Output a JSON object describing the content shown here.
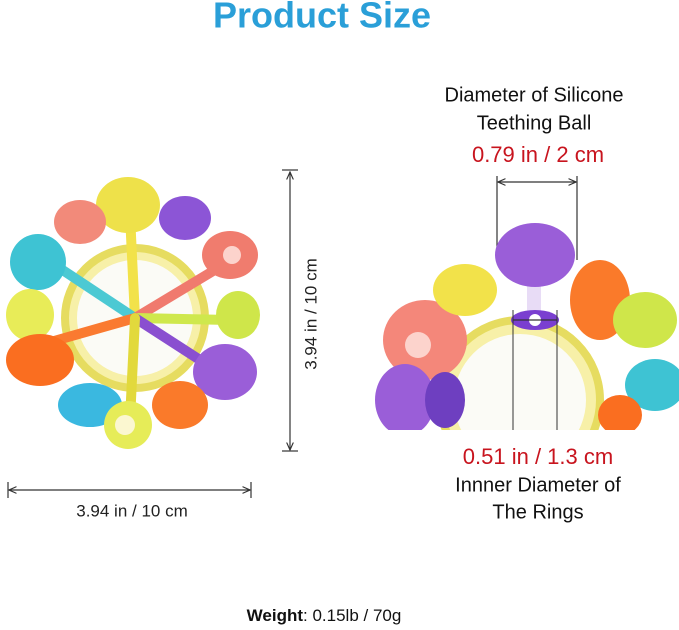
{
  "header": {
    "title": "Product Size"
  },
  "left": {
    "height_label": "3.94 in / 10 cm",
    "width_label": "3.94 in / 10 cm"
  },
  "right": {
    "ball_label": [
      "Diameter of Silicone",
      "Teething Ball"
    ],
    "ball_size": "0.79 in / 2 cm",
    "ring_size": "0.51 in / 1.3 cm",
    "ring_label": [
      "Innner Diameter of",
      "The Rings"
    ]
  },
  "footer": {
    "weight_label": "Weight",
    "weight_value": ": 0.15lb / 70g"
  }
}
